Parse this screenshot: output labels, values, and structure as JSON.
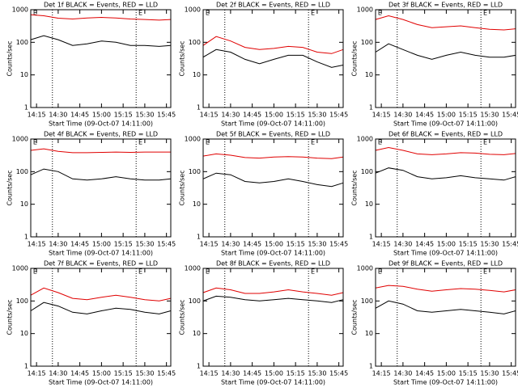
{
  "chart_data": [
    {
      "type": "line",
      "title": "Det 1f BLACK = Events, RED = LLD",
      "xlabel": "Start Time (09-Oct-07 14:11:00)",
      "ylabel": "Counts/sec",
      "log_y": true,
      "xlim": [
        851,
        948
      ],
      "xticks": [
        {
          "value": 855,
          "label": "14:15"
        },
        {
          "value": 870,
          "label": "14:30"
        },
        {
          "value": 885,
          "label": "14:45"
        },
        {
          "value": 900,
          "label": "15:00"
        },
        {
          "value": 915,
          "label": "15:15"
        },
        {
          "value": 930,
          "label": "15:30"
        },
        {
          "value": 945,
          "label": "15:45"
        }
      ],
      "ylim": [
        1,
        1000
      ],
      "yticks": [
        1,
        10,
        100,
        1000
      ],
      "vlines": [
        866,
        924
      ],
      "annotations": [
        {
          "x": 854,
          "text": "E"
        },
        {
          "x": 927,
          "text": "E"
        }
      ],
      "x": [
        851,
        860,
        870,
        880,
        890,
        900,
        910,
        920,
        930,
        940,
        948
      ],
      "series": [
        {
          "color": "#e00000",
          "values": [
            700,
            650,
            550,
            520,
            560,
            580,
            560,
            520,
            500,
            480,
            500
          ]
        },
        {
          "color": "#000000",
          "values": [
            120,
            160,
            120,
            80,
            90,
            110,
            100,
            80,
            80,
            75,
            80
          ]
        }
      ]
    },
    {
      "type": "line",
      "title": "Det 2f BLACK = Events, RED = LLD",
      "xlabel": "Start Time (09-Oct-07 14:11:00)",
      "ylabel": "Counts/sec",
      "log_y": true,
      "xlim": [
        851,
        948
      ],
      "xticks": [
        {
          "value": 855,
          "label": "14:15"
        },
        {
          "value": 870,
          "label": "14:30"
        },
        {
          "value": 885,
          "label": "14:45"
        },
        {
          "value": 900,
          "label": "15:00"
        },
        {
          "value": 915,
          "label": "15:15"
        },
        {
          "value": 930,
          "label": "15:30"
        },
        {
          "value": 945,
          "label": "15:45"
        }
      ],
      "ylim": [
        1,
        1000
      ],
      "yticks": [
        1,
        10,
        100,
        1000
      ],
      "vlines": [
        866,
        924
      ],
      "annotations": [
        {
          "x": 854,
          "text": "E"
        },
        {
          "x": 927,
          "text": "E"
        }
      ],
      "x": [
        851,
        860,
        870,
        880,
        890,
        900,
        910,
        920,
        930,
        940,
        948
      ],
      "series": [
        {
          "color": "#e00000",
          "values": [
            80,
            150,
            110,
            70,
            60,
            65,
            75,
            70,
            50,
            45,
            60
          ]
        },
        {
          "color": "#000000",
          "values": [
            35,
            60,
            50,
            30,
            22,
            30,
            40,
            40,
            25,
            17,
            20
          ]
        }
      ]
    },
    {
      "type": "line",
      "title": "Det 3f BLACK = Events, RED = LLD",
      "xlabel": "Start Time (09-Oct-07 14:11:00)",
      "ylabel": "Counts/sec",
      "log_y": true,
      "xlim": [
        851,
        948
      ],
      "xticks": [
        {
          "value": 855,
          "label": "14:15"
        },
        {
          "value": 870,
          "label": "14:30"
        },
        {
          "value": 885,
          "label": "14:45"
        },
        {
          "value": 900,
          "label": "15:00"
        },
        {
          "value": 915,
          "label": "15:15"
        },
        {
          "value": 930,
          "label": "15:30"
        },
        {
          "value": 945,
          "label": "15:45"
        }
      ],
      "ylim": [
        1,
        1000
      ],
      "yticks": [
        1,
        10,
        100,
        1000
      ],
      "vlines": [
        866,
        924
      ],
      "annotations": [
        {
          "x": 854,
          "text": "E"
        },
        {
          "x": 927,
          "text": "E"
        }
      ],
      "x": [
        851,
        860,
        870,
        880,
        890,
        900,
        910,
        920,
        930,
        940,
        948
      ],
      "series": [
        {
          "color": "#e00000",
          "values": [
            500,
            650,
            500,
            350,
            280,
            300,
            320,
            280,
            250,
            240,
            260
          ]
        },
        {
          "color": "#000000",
          "values": [
            50,
            90,
            60,
            40,
            30,
            40,
            50,
            40,
            35,
            35,
            40
          ]
        }
      ]
    },
    {
      "type": "line",
      "title": "Det 4f BLACK = Events, RED = LLD",
      "xlabel": "Start Time (09-Oct-07 14:11:00)",
      "ylabel": "Counts/sec",
      "log_y": true,
      "xlim": [
        851,
        948
      ],
      "xticks": [
        {
          "value": 855,
          "label": "14:15"
        },
        {
          "value": 870,
          "label": "14:30"
        },
        {
          "value": 885,
          "label": "14:45"
        },
        {
          "value": 900,
          "label": "15:00"
        },
        {
          "value": 915,
          "label": "15:15"
        },
        {
          "value": 930,
          "label": "15:30"
        },
        {
          "value": 945,
          "label": "15:45"
        }
      ],
      "ylim": [
        1,
        1000
      ],
      "yticks": [
        1,
        10,
        100,
        1000
      ],
      "vlines": [
        866,
        924
      ],
      "annotations": [
        {
          "x": 854,
          "text": "E"
        },
        {
          "x": 927,
          "text": "E"
        }
      ],
      "x": [
        851,
        860,
        870,
        880,
        890,
        900,
        910,
        920,
        930,
        940,
        948
      ],
      "series": [
        {
          "color": "#e00000",
          "values": [
            450,
            500,
            420,
            380,
            380,
            390,
            400,
            390,
            400,
            400,
            400
          ]
        },
        {
          "color": "#000000",
          "values": [
            80,
            120,
            100,
            60,
            55,
            60,
            70,
            60,
            55,
            55,
            60
          ]
        }
      ]
    },
    {
      "type": "line",
      "title": "Det 5f BLACK = Events, RED = LLD",
      "xlabel": "Start Time (09-Oct-07 14:11:00)",
      "ylabel": "Counts/sec",
      "log_y": true,
      "xlim": [
        851,
        948
      ],
      "xticks": [
        {
          "value": 855,
          "label": "14:15"
        },
        {
          "value": 870,
          "label": "14:30"
        },
        {
          "value": 885,
          "label": "14:45"
        },
        {
          "value": 900,
          "label": "15:00"
        },
        {
          "value": 915,
          "label": "15:15"
        },
        {
          "value": 930,
          "label": "15:30"
        },
        {
          "value": 945,
          "label": "15:45"
        }
      ],
      "ylim": [
        1,
        1000
      ],
      "yticks": [
        1,
        10,
        100,
        1000
      ],
      "vlines": [
        866,
        924
      ],
      "annotations": [
        {
          "x": 854,
          "text": "E"
        },
        {
          "x": 927,
          "text": "E"
        }
      ],
      "x": [
        851,
        860,
        870,
        880,
        890,
        900,
        910,
        920,
        930,
        940,
        948
      ],
      "series": [
        {
          "color": "#e00000",
          "values": [
            300,
            350,
            320,
            270,
            260,
            280,
            290,
            280,
            260,
            250,
            280
          ]
        },
        {
          "color": "#000000",
          "values": [
            60,
            90,
            80,
            50,
            45,
            50,
            60,
            50,
            40,
            35,
            45
          ]
        }
      ]
    },
    {
      "type": "line",
      "title": "Det 6f BLACK = Events, RED = LLD",
      "xlabel": "Start Time (09-Oct-07 14:11:00)",
      "ylabel": "Counts/sec",
      "log_y": true,
      "xlim": [
        851,
        948
      ],
      "xticks": [
        {
          "value": 855,
          "label": "14:15"
        },
        {
          "value": 870,
          "label": "14:30"
        },
        {
          "value": 885,
          "label": "14:45"
        },
        {
          "value": 900,
          "label": "15:00"
        },
        {
          "value": 915,
          "label": "15:15"
        },
        {
          "value": 930,
          "label": "15:30"
        },
        {
          "value": 945,
          "label": "15:45"
        }
      ],
      "ylim": [
        1,
        1000
      ],
      "yticks": [
        1,
        10,
        100,
        1000
      ],
      "vlines": [
        866,
        924
      ],
      "annotations": [
        {
          "x": 854,
          "text": "E"
        },
        {
          "x": 927,
          "text": "E"
        }
      ],
      "x": [
        851,
        860,
        870,
        880,
        890,
        900,
        910,
        920,
        930,
        940,
        948
      ],
      "series": [
        {
          "color": "#e00000",
          "values": [
            450,
            550,
            450,
            350,
            330,
            350,
            380,
            370,
            340,
            330,
            360
          ]
        },
        {
          "color": "#000000",
          "values": [
            90,
            130,
            110,
            70,
            60,
            65,
            75,
            65,
            60,
            55,
            70
          ]
        }
      ]
    },
    {
      "type": "line",
      "title": "Det 7f BLACK = Events, RED = LLD",
      "xlabel": "Start Time (09-Oct-07 14:11:00)",
      "ylabel": "Counts/sec",
      "log_y": true,
      "xlim": [
        851,
        948
      ],
      "xticks": [
        {
          "value": 855,
          "label": "14:15"
        },
        {
          "value": 870,
          "label": "14:30"
        },
        {
          "value": 885,
          "label": "14:45"
        },
        {
          "value": 900,
          "label": "15:00"
        },
        {
          "value": 915,
          "label": "15:15"
        },
        {
          "value": 930,
          "label": "15:30"
        },
        {
          "value": 945,
          "label": "15:45"
        }
      ],
      "ylim": [
        1,
        1000
      ],
      "yticks": [
        1,
        10,
        100,
        1000
      ],
      "vlines": [
        866,
        924
      ],
      "annotations": [
        {
          "x": 854,
          "text": "E"
        },
        {
          "x": 927,
          "text": "E"
        }
      ],
      "x": [
        851,
        860,
        870,
        880,
        890,
        900,
        910,
        920,
        930,
        940,
        948
      ],
      "series": [
        {
          "color": "#e00000",
          "values": [
            150,
            250,
            180,
            120,
            110,
            130,
            150,
            130,
            110,
            100,
            120
          ]
        },
        {
          "color": "#000000",
          "values": [
            50,
            90,
            70,
            45,
            40,
            50,
            60,
            55,
            45,
            40,
            50
          ]
        }
      ]
    },
    {
      "type": "line",
      "title": "Det 8f BLACK = Events, RED = LLD",
      "xlabel": "Start Time (09-Oct-07 14:11:00)",
      "ylabel": "Counts/sec",
      "log_y": true,
      "xlim": [
        851,
        948
      ],
      "xticks": [
        {
          "value": 855,
          "label": "14:15"
        },
        {
          "value": 870,
          "label": "14:30"
        },
        {
          "value": 885,
          "label": "14:45"
        },
        {
          "value": 900,
          "label": "15:00"
        },
        {
          "value": 915,
          "label": "15:15"
        },
        {
          "value": 930,
          "label": "15:30"
        },
        {
          "value": 945,
          "label": "15:45"
        }
      ],
      "ylim": [
        1,
        1000
      ],
      "yticks": [
        1,
        10,
        100,
        1000
      ],
      "vlines": [
        866,
        924
      ],
      "annotations": [
        {
          "x": 854,
          "text": "E"
        },
        {
          "x": 927,
          "text": "E"
        }
      ],
      "x": [
        851,
        860,
        870,
        880,
        890,
        900,
        910,
        920,
        930,
        940,
        948
      ],
      "series": [
        {
          "color": "#e00000",
          "values": [
            180,
            250,
            220,
            170,
            170,
            190,
            220,
            190,
            170,
            150,
            180
          ]
        },
        {
          "color": "#000000",
          "values": [
            100,
            140,
            130,
            110,
            100,
            110,
            120,
            110,
            100,
            90,
            110
          ]
        }
      ]
    },
    {
      "type": "line",
      "title": "Det 9f BLACK = Events, RED = LLD",
      "xlabel": "Start Time (09-Oct-07 14:11:00)",
      "ylabel": "Counts/sec",
      "log_y": true,
      "xlim": [
        851,
        948
      ],
      "xticks": [
        {
          "value": 855,
          "label": "14:15"
        },
        {
          "value": 870,
          "label": "14:30"
        },
        {
          "value": 885,
          "label": "14:45"
        },
        {
          "value": 900,
          "label": "15:00"
        },
        {
          "value": 915,
          "label": "15:15"
        },
        {
          "value": 930,
          "label": "15:30"
        },
        {
          "value": 945,
          "label": "15:45"
        }
      ],
      "ylim": [
        1,
        1000
      ],
      "yticks": [
        1,
        10,
        100,
        1000
      ],
      "vlines": [
        866,
        924
      ],
      "annotations": [
        {
          "x": 854,
          "text": "E"
        },
        {
          "x": 927,
          "text": "E"
        }
      ],
      "x": [
        851,
        860,
        870,
        880,
        890,
        900,
        910,
        920,
        930,
        940,
        948
      ],
      "series": [
        {
          "color": "#e00000",
          "values": [
            250,
            300,
            280,
            230,
            200,
            220,
            240,
            230,
            210,
            190,
            220
          ]
        },
        {
          "color": "#000000",
          "values": [
            60,
            100,
            80,
            50,
            45,
            50,
            55,
            50,
            45,
            40,
            50
          ]
        }
      ]
    }
  ]
}
